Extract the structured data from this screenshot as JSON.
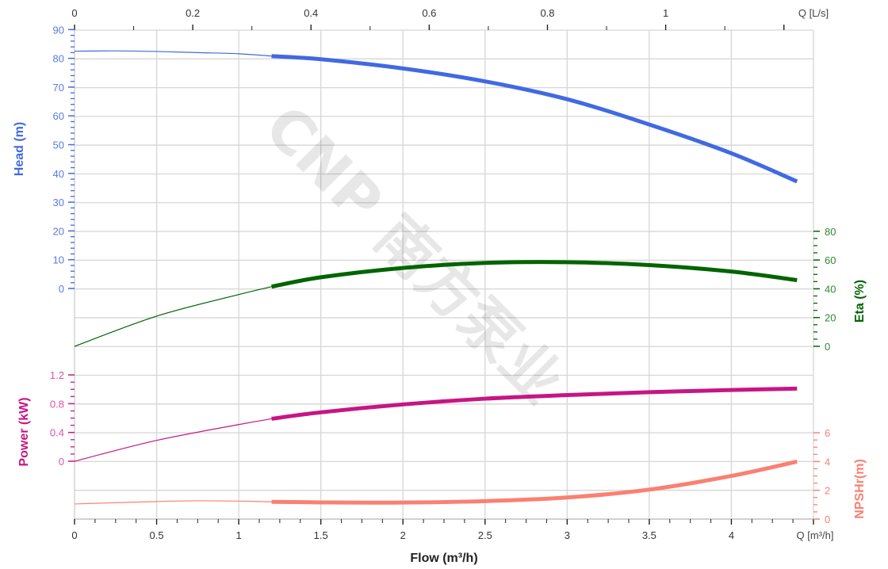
{
  "chart_data": {
    "type": "line",
    "watermark": "CNP 南方泵业",
    "x_axis": {
      "title": "Flow (m³/h)",
      "unit_label": "Q [m³/h]",
      "range": [
        0,
        4.5
      ],
      "ticks": [
        "0",
        "0.5",
        "1",
        "1.5",
        "2",
        "2.5",
        "3",
        "3.5",
        "4"
      ],
      "tick_values": [
        0,
        0.5,
        1,
        1.5,
        2,
        2.5,
        3,
        3.5,
        4
      ]
    },
    "x2_axis": {
      "unit_label": "Q [L/s]",
      "range": [
        0,
        1.25
      ],
      "ticks": [
        "0",
        "0.2",
        "0.4",
        "0.6",
        "0.8",
        "1"
      ],
      "tick_values": [
        0,
        0.2,
        0.4,
        0.6,
        0.8,
        1
      ]
    },
    "grid": true,
    "operating_range": [
      1.2,
      4.4
    ],
    "series": [
      {
        "name": "Head (m)",
        "axis": "left",
        "color": "#4169e1",
        "tick_color": "#5a7be0",
        "ticks": [
          "0",
          "10",
          "20",
          "30",
          "40",
          "50",
          "60",
          "70",
          "80",
          "90"
        ],
        "range": [
          0,
          90
        ],
        "x": [
          0,
          0.25,
          0.5,
          0.75,
          1,
          1.2,
          1.5,
          2,
          2.5,
          3,
          3.5,
          4,
          4.4
        ],
        "y": [
          82.5,
          82.6,
          82.4,
          82.0,
          81.6,
          80.8,
          79.7,
          76.5,
          72.0,
          65.8,
          57.0,
          47.0,
          37.2
        ]
      },
      {
        "name": "Eta (%)",
        "axis": "right",
        "color": "#006400",
        "tick_color": "#2e8b2e",
        "ticks": [
          "0",
          "20",
          "40",
          "60",
          "80"
        ],
        "range": [
          0,
          80
        ],
        "x": [
          0,
          0.5,
          1,
          1.2,
          1.5,
          2,
          2.5,
          3,
          3.5,
          4,
          4.4
        ],
        "y": [
          0,
          21,
          36,
          41.5,
          48,
          54.5,
          58,
          58.5,
          56.5,
          52,
          46
        ]
      },
      {
        "name": "Power (kW)",
        "axis": "left",
        "color": "#c71585",
        "tick_color": "#e052a8",
        "ticks": [
          "0",
          "0.4",
          "0.8",
          "1.2"
        ],
        "range": [
          0,
          1.2
        ],
        "x": [
          0,
          0.5,
          1,
          1.2,
          1.5,
          2,
          2.5,
          3,
          3.5,
          4,
          4.4
        ],
        "y": [
          0,
          0.29,
          0.51,
          0.59,
          0.68,
          0.79,
          0.87,
          0.92,
          0.96,
          0.99,
          1.01
        ]
      },
      {
        "name": "NPSHr(m)",
        "axis": "right",
        "color": "#fa8072",
        "tick_color": "#fa8072",
        "ticks": [
          "0",
          "2",
          "4",
          "6"
        ],
        "range": [
          0,
          6
        ],
        "x": [
          0,
          0.5,
          0.75,
          1,
          1.2,
          1.5,
          2,
          2.5,
          3,
          3.5,
          4,
          4.4
        ],
        "y": [
          1.05,
          1.22,
          1.27,
          1.25,
          1.2,
          1.16,
          1.15,
          1.25,
          1.5,
          2.05,
          3.0,
          4.0
        ]
      }
    ]
  }
}
